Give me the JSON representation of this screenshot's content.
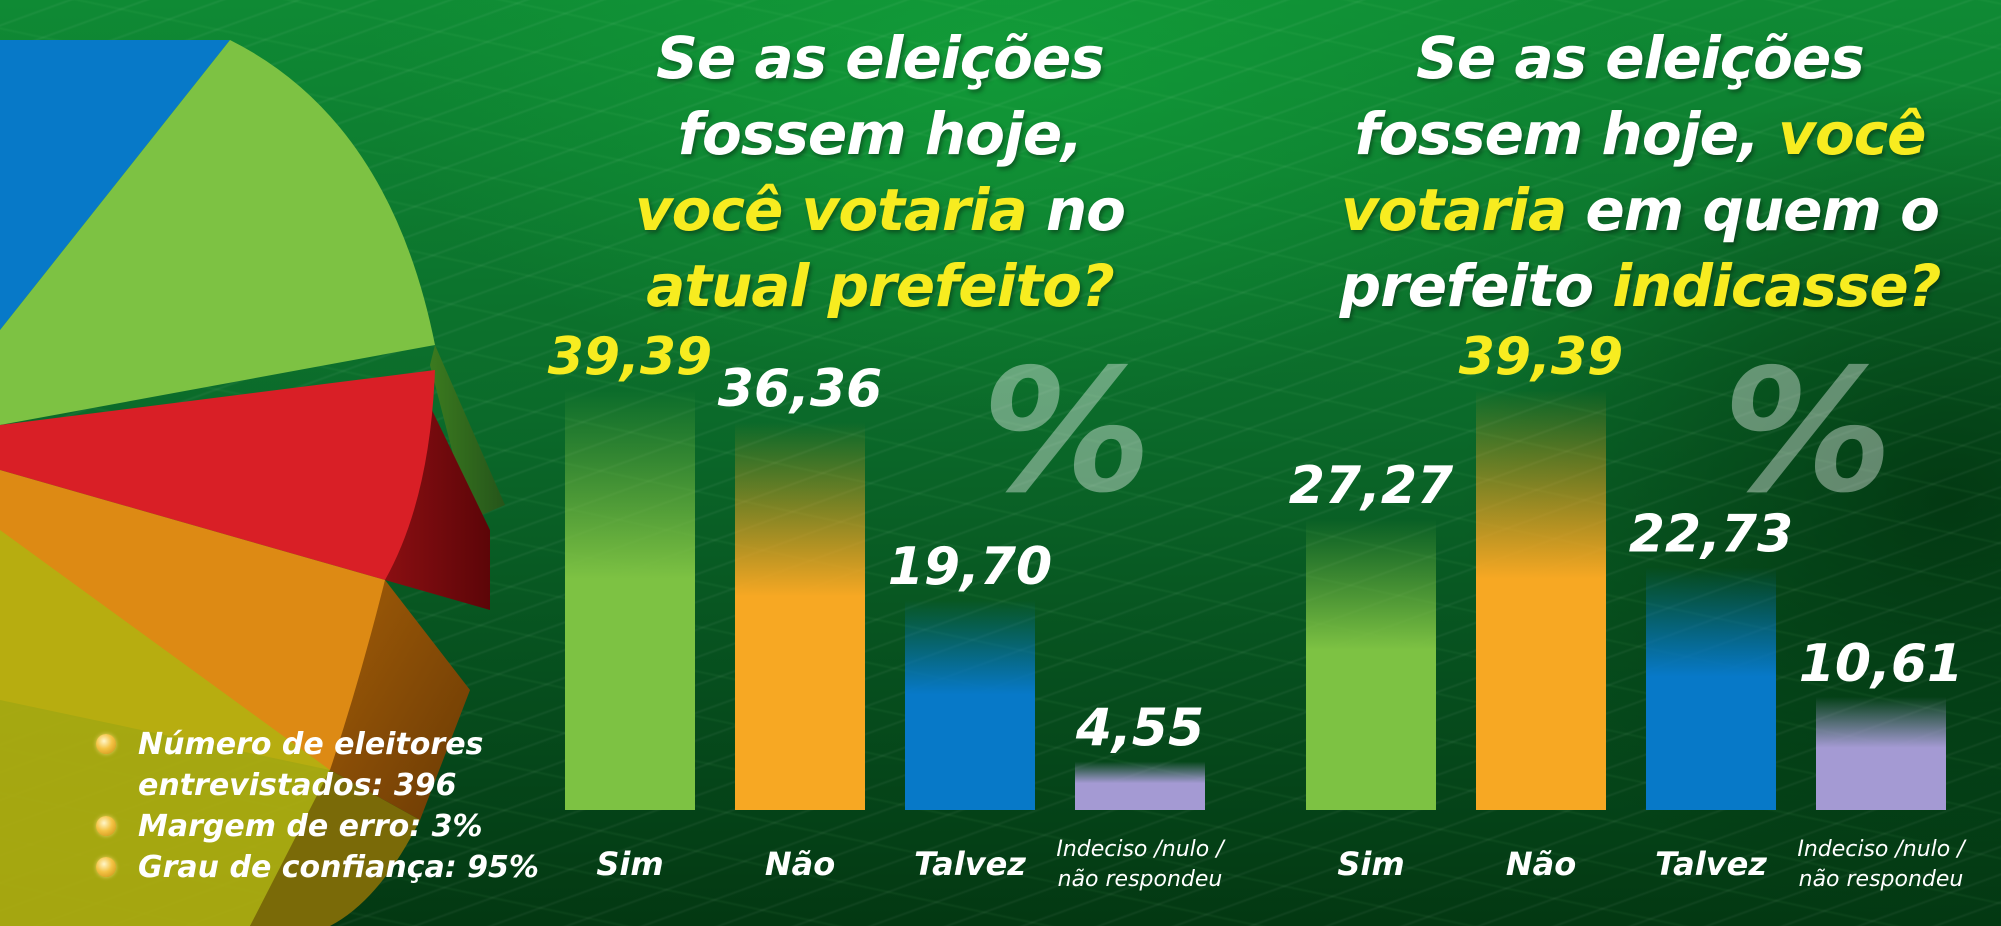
{
  "chart_data": [
    {
      "type": "bar",
      "title_parts": [
        {
          "text": "Se as eleições",
          "highlight": false,
          "break": true
        },
        {
          "text": "fossem hoje,",
          "highlight": false,
          "break": true
        },
        {
          "text": "você votaria",
          "highlight": true,
          "break": false
        },
        {
          "text": " no",
          "highlight": false,
          "break": true
        },
        {
          "text": "atual prefeito?",
          "highlight": true,
          "break": false
        }
      ],
      "categories": [
        "Sim",
        "Não",
        "Talvez",
        "Indeciso /nulo / não respondeu"
      ],
      "category_lines": [
        [
          "Sim"
        ],
        [
          "Não"
        ],
        [
          "Talvez"
        ],
        [
          "Indeciso /nulo /",
          "não respondeu"
        ]
      ],
      "values": [
        39.39,
        36.36,
        19.7,
        4.55
      ],
      "value_labels": [
        "39,39",
        "36,36",
        "19,70",
        "4,55"
      ],
      "highlight_index": 0,
      "unit_label": "%",
      "ylim": [
        0,
        45
      ]
    },
    {
      "type": "bar",
      "title_parts": [
        {
          "text": "Se as eleições",
          "highlight": false,
          "break": true
        },
        {
          "text": "fossem hoje, ",
          "highlight": false,
          "break": false
        },
        {
          "text": "você",
          "highlight": true,
          "break": true
        },
        {
          "text": "votaria",
          "highlight": true,
          "break": false
        },
        {
          "text": " em quem o",
          "highlight": false,
          "break": true
        },
        {
          "text": "prefeito ",
          "highlight": false,
          "break": false
        },
        {
          "text": "indicasse?",
          "highlight": true,
          "break": false
        }
      ],
      "categories": [
        "Sim",
        "Não",
        "Talvez",
        "Indeciso /nulo / não respondeu"
      ],
      "category_lines": [
        [
          "Sim"
        ],
        [
          "Não"
        ],
        [
          "Talvez"
        ],
        [
          "Indeciso /nulo /",
          "não respondeu"
        ]
      ],
      "values": [
        27.27,
        39.39,
        22.73,
        10.61
      ],
      "value_labels": [
        "27,27",
        "39,39",
        "22,73",
        "10,61"
      ],
      "highlight_index": 1,
      "unit_label": "%",
      "ylim": [
        0,
        45
      ]
    }
  ],
  "colors": {
    "bars": [
      "#7dc243",
      "#f7a823",
      "#0779c8",
      "#a49ad3"
    ],
    "highlight_text": "#f7ec20",
    "pie": [
      "#0779c8",
      "#7dc243",
      "#d91f26",
      "#e38f16",
      "#b8b512"
    ]
  },
  "notes": [
    {
      "lines": [
        "Número de eleitores",
        "entrevistados: 396"
      ],
      "icon": "bullet-icon"
    },
    {
      "lines": [
        "Margem de erro: 3%"
      ],
      "icon": "bullet-icon"
    },
    {
      "lines": [
        "Grau de confiança: 95%"
      ],
      "icon": "bullet-icon"
    }
  ]
}
